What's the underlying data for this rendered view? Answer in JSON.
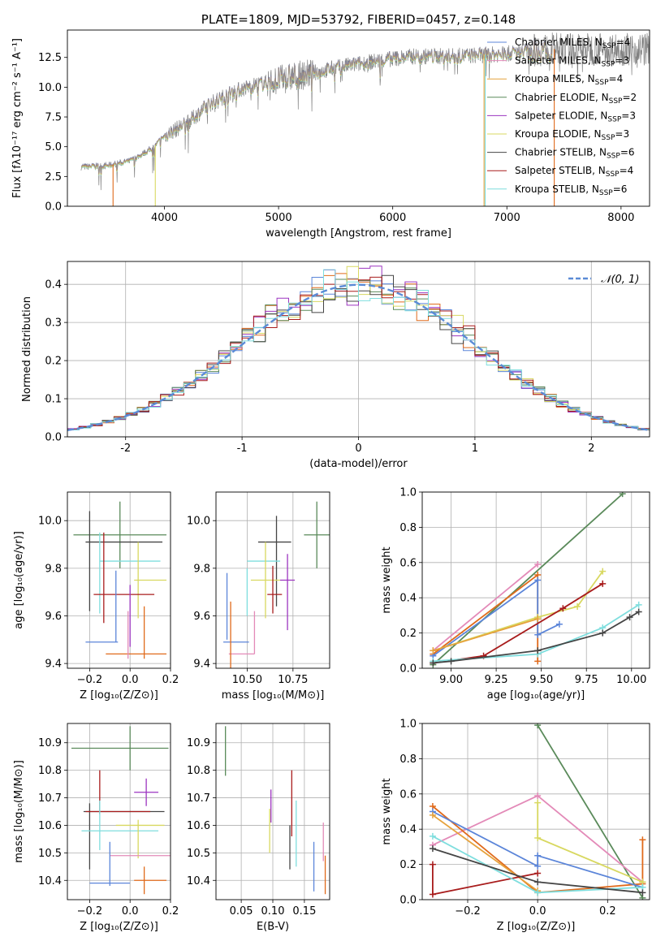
{
  "colors": {
    "chabrier_miles": "#5b85d9",
    "salpeter_miles": "#e06a1b",
    "kroupa_miles": "#e6a23c",
    "chabrier_elodie": "#5a8a5a",
    "salpeter_elodie": "#9c34c0",
    "kroupa_elodie": "#d8d860",
    "chabrier_stelib": "#454545",
    "salpeter_stelib": "#a81c1c",
    "kroupa_stelib": "#7fdede",
    "kroupa_miles_pink": "#e38ab8",
    "normal_curve": "#5b8bd6",
    "grid": "#b0b0b0"
  },
  "chart_data": [
    {
      "id": "spectrum",
      "type": "line",
      "title": "PLATE=1809, MJD=53792, FIBERID=0457, z=0.148",
      "xlabel": "wavelength [Angstrom, rest frame]",
      "ylabel": "Flux [fλ10⁻¹⁷ erg cm⁻² s⁻¹ A⁻¹]",
      "xlim": [
        3150,
        8250
      ],
      "ylim": [
        0,
        14.8
      ],
      "xticks": [
        4000,
        5000,
        6000,
        7000,
        8000
      ],
      "yticks": [
        0.0,
        2.5,
        5.0,
        7.5,
        10.0,
        12.5
      ],
      "grid": false,
      "legend_position": "top-right",
      "legend": [
        {
          "label": "Chabrier MILES, N",
          "sub": "SSP",
          "tail": "=4",
          "color_key": "chabrier_miles"
        },
        {
          "label": "Salpeter MILES, N",
          "sub": "SSP",
          "tail": "=3",
          "color_key": "kroupa_miles_pink"
        },
        {
          "label": "Kroupa MILES, N",
          "sub": "SSP",
          "tail": "=4",
          "color_key": "kroupa_miles"
        },
        {
          "label": "Chabrier ELODIE, N",
          "sub": "SSP",
          "tail": "=2",
          "color_key": "chabrier_elodie"
        },
        {
          "label": "Salpeter ELODIE, N",
          "sub": "SSP",
          "tail": "=3",
          "color_key": "salpeter_elodie"
        },
        {
          "label": "Kroupa ELODIE, N",
          "sub": "SSP",
          "tail": "=3",
          "color_key": "kroupa_elodie"
        },
        {
          "label": "Chabrier STELIB, N",
          "sub": "SSP",
          "tail": "=6",
          "color_key": "chabrier_stelib"
        },
        {
          "label": "Salpeter STELIB, N",
          "sub": "SSP",
          "tail": "=4",
          "color_key": "salpeter_stelib"
        },
        {
          "label": "Kroupa STELIB, N",
          "sub": "SSP",
          "tail": "=6",
          "color_key": "kroupa_stelib"
        }
      ],
      "continuum": [
        [
          3270,
          3.3
        ],
        [
          3500,
          3.4
        ],
        [
          3700,
          3.8
        ],
        [
          3900,
          4.9
        ],
        [
          4000,
          5.9
        ],
        [
          4200,
          7.0
        ],
        [
          4400,
          8.6
        ],
        [
          4600,
          9.6
        ],
        [
          4800,
          10.2
        ],
        [
          5000,
          10.6
        ],
        [
          5200,
          11.0
        ],
        [
          5400,
          11.4
        ],
        [
          5600,
          11.8
        ],
        [
          5800,
          12.1
        ],
        [
          6000,
          12.4
        ],
        [
          6200,
          12.6
        ],
        [
          6500,
          12.6
        ],
        [
          6800,
          12.7
        ],
        [
          7000,
          12.8
        ],
        [
          7200,
          13.1
        ],
        [
          7400,
          13.2
        ],
        [
          7600,
          13.2
        ]
      ],
      "model_range": [
        3270,
        7400
      ],
      "cutoff_lines": [
        {
          "x": 3550,
          "color_key": "salpeter_miles"
        },
        {
          "x": 3920,
          "color_key": "kroupa_elodie"
        },
        {
          "x": 6800,
          "color_key": "kroupa_miles"
        },
        {
          "x": 6810,
          "color_key": "kroupa_stelib"
        },
        {
          "x": 7415,
          "color_key": "salpeter_miles"
        }
      ]
    },
    {
      "id": "residuals",
      "type": "histogram",
      "xlabel": "(data-model)/error",
      "ylabel": "Normed distribution",
      "xlim": [
        -2.5,
        2.5
      ],
      "ylim": [
        0,
        0.46
      ],
      "xticks": [
        -2,
        -1,
        0,
        1,
        2
      ],
      "yticks": [
        0.0,
        0.1,
        0.2,
        0.3,
        0.4
      ],
      "grid": true,
      "legend": "𝒩(0, 1)",
      "bin_width": 0.1,
      "hist_series": [
        "chabrier_miles",
        "salpeter_miles",
        "chabrier_elodie",
        "salpeter_elodie",
        "kroupa_elodie",
        "chabrier_stelib",
        "salpeter_stelib",
        "kroupa_stelib"
      ]
    },
    {
      "id": "age_vs_Z",
      "type": "errorbar",
      "xlabel": "Z [log₁₀(Z/Z⊙)]",
      "ylabel": "age  [log₁₀(age/yr)]",
      "xlim": [
        -0.31,
        0.2
      ],
      "ylim": [
        9.38,
        10.12
      ],
      "xticks": [
        -0.2,
        0.0,
        0.2
      ],
      "xticklabels": [
        "−0.2",
        "0.0",
        "0.2"
      ],
      "yticks": [
        9.4,
        9.6,
        9.8,
        10.0
      ],
      "grid": true,
      "points": [
        {
          "c": "chabrier_elodie",
          "x": -0.05,
          "xe": 0.23,
          "y": 9.94,
          "ye": 0.14
        },
        {
          "c": "chabrier_stelib",
          "x": -0.03,
          "xe": 0.19,
          "y": 9.91,
          "ye": 0.0
        },
        {
          "c": "chabrier_stelib",
          "x": -0.2,
          "xe": 0.0,
          "y": 9.83,
          "ye": 0.21
        },
        {
          "c": "kroupa_stelib",
          "x": 0.0,
          "xe": 0.15,
          "y": 9.83,
          "ye": 0.0
        },
        {
          "c": "kroupa_stelib",
          "x": -0.15,
          "xe": 0.0,
          "y": 9.78,
          "ye": 0.17
        },
        {
          "c": "kroupa_elodie",
          "x": 0.1,
          "xe": 0.08,
          "y": 9.75,
          "ye": 0.0
        },
        {
          "c": "kroupa_elodie",
          "x": 0.04,
          "xe": 0.0,
          "y": 9.75,
          "ye": 0.16
        },
        {
          "c": "salpeter_stelib",
          "x": -0.13,
          "xe": 0.0,
          "y": 9.76,
          "ye": 0.19
        },
        {
          "c": "salpeter_stelib",
          "x": -0.03,
          "xe": 0.15,
          "y": 9.69,
          "ye": 0.0
        },
        {
          "c": "chabrier_miles",
          "x": -0.07,
          "xe": 0.0,
          "y": 9.64,
          "ye": 0.15
        },
        {
          "c": "salpeter_elodie",
          "x": 0.0,
          "xe": 0.0,
          "y": 9.6,
          "ye": 0.13
        },
        {
          "c": "chabrier_miles",
          "x": -0.14,
          "xe": 0.08,
          "y": 9.49,
          "ye": 0.0
        },
        {
          "c": "salpeter_miles",
          "x": 0.07,
          "xe": 0.0,
          "y": 9.53,
          "ye": 0.11
        },
        {
          "c": "salpeter_miles",
          "x": 0.03,
          "xe": 0.15,
          "y": 9.44,
          "ye": 0.0
        },
        {
          "c": "kroupa_miles_pink",
          "x": -0.01,
          "xe": 0.0,
          "y": 9.52,
          "ye": 0.1
        }
      ]
    },
    {
      "id": "age_vs_mass",
      "type": "errorbar",
      "xlabel": "mass [log₁₀(M/M⊙)]",
      "ylabel": "",
      "xlim": [
        10.33,
        10.95
      ],
      "ylim": [
        9.38,
        10.12
      ],
      "xticks": [
        10.5,
        10.75
      ],
      "xticklabels": [
        "10.50",
        "10.75"
      ],
      "yticks": [
        9.4,
        9.6,
        9.8,
        10.0
      ],
      "grid": true,
      "points": [
        {
          "c": "chabrier_elodie",
          "x": 10.88,
          "xe": 0.07,
          "y": 9.94,
          "ye": 0.14
        },
        {
          "c": "chabrier_stelib",
          "x": 10.65,
          "xe": 0.09,
          "y": 9.91,
          "ye": 0.0
        },
        {
          "c": "chabrier_stelib",
          "x": 10.66,
          "xe": 0.0,
          "y": 9.83,
          "ye": 0.19
        },
        {
          "c": "kroupa_stelib",
          "x": 10.59,
          "xe": 0.09,
          "y": 9.83,
          "ye": 0.0
        },
        {
          "c": "kroupa_stelib",
          "x": 10.5,
          "xe": 0.0,
          "y": 9.7,
          "ye": 0.1
        },
        {
          "c": "kroupa_elodie",
          "x": 10.6,
          "xe": 0.08,
          "y": 9.75,
          "ye": 0.0
        },
        {
          "c": "kroupa_elodie",
          "x": 10.6,
          "xe": 0.0,
          "y": 9.75,
          "ye": 0.16
        },
        {
          "c": "salpeter_elodie",
          "x": 10.72,
          "xe": 0.04,
          "y": 9.75,
          "ye": 0.0
        },
        {
          "c": "salpeter_elodie",
          "x": 10.72,
          "xe": 0.0,
          "y": 9.7,
          "ye": 0.16
        },
        {
          "c": "salpeter_stelib",
          "x": 10.65,
          "xe": 0.04,
          "y": 9.69,
          "ye": 0.0
        },
        {
          "c": "salpeter_stelib",
          "x": 10.64,
          "xe": 0.0,
          "y": 9.71,
          "ye": 0.1
        },
        {
          "c": "chabrier_miles",
          "x": 10.39,
          "xe": 0.0,
          "y": 9.64,
          "ye": 0.14
        },
        {
          "c": "chabrier_miles",
          "x": 10.44,
          "xe": 0.07,
          "y": 9.49,
          "ye": 0.0
        },
        {
          "c": "kroupa_miles_pink",
          "x": 10.47,
          "xe": 0.07,
          "y": 9.44,
          "ye": 0.0
        },
        {
          "c": "salpeter_miles",
          "x": 10.41,
          "xe": 0.0,
          "y": 9.52,
          "ye": 0.14
        },
        {
          "c": "kroupa_miles_pink",
          "x": 10.54,
          "xe": 0.0,
          "y": 9.53,
          "ye": 0.09
        }
      ]
    },
    {
      "id": "weight_vs_age",
      "type": "line",
      "xlabel": "age  [log₁₀(age/yr)]",
      "ylabel": "mass weight",
      "xlim": [
        8.84,
        10.1
      ],
      "ylim": [
        0,
        1.0
      ],
      "xticks": [
        9.0,
        9.25,
        9.5,
        9.75,
        10.0
      ],
      "xticklabels": [
        "9.00",
        "9.25",
        "9.50",
        "9.75",
        "10.00"
      ],
      "yticks": [
        0.0,
        0.2,
        0.4,
        0.6,
        0.8,
        1.0
      ],
      "grid": true,
      "series": [
        {
          "c": "chabrier_elodie",
          "x": [
            8.9,
            9.95
          ],
          "y": [
            0.02,
            0.99
          ]
        },
        {
          "c": "kroupa_miles_pink",
          "x": [
            8.9,
            9.48
          ],
          "y": [
            0.1,
            0.59
          ]
        },
        {
          "c": "salpeter_miles",
          "x": [
            8.9,
            9.48,
            9.48
          ],
          "y": [
            0.08,
            0.53,
            0.04
          ]
        },
        {
          "c": "chabrier_miles",
          "x": [
            8.9,
            9.48,
            9.48,
            9.6
          ],
          "y": [
            0.07,
            0.5,
            0.19,
            0.25
          ]
        },
        {
          "c": "kroupa_elodie",
          "x": [
            8.9,
            9.48,
            9.7,
            9.84
          ],
          "y": [
            0.1,
            0.29,
            0.35,
            0.55
          ]
        },
        {
          "c": "kroupa_miles",
          "x": [
            8.9,
            9.48
          ],
          "y": [
            0.1,
            0.28
          ]
        },
        {
          "c": "salpeter_stelib",
          "x": [
            8.9,
            9.18,
            9.62,
            9.84
          ],
          "y": [
            0.03,
            0.07,
            0.34,
            0.48
          ]
        },
        {
          "c": "kroupa_stelib",
          "x": [
            8.9,
            9.48,
            9.84,
            10.04
          ],
          "y": [
            0.04,
            0.08,
            0.23,
            0.36
          ]
        },
        {
          "c": "chabrier_stelib",
          "x": [
            8.9,
            9.0,
            9.48,
            9.84,
            9.99,
            10.04
          ],
          "y": [
            0.03,
            0.04,
            0.1,
            0.2,
            0.29,
            0.32
          ]
        }
      ]
    },
    {
      "id": "mass_vs_Z",
      "type": "errorbar",
      "xlabel": "Z [log₁₀(Z/Z⊙)]",
      "ylabel": "mass [log₁₀(M/M⊙)]",
      "xlim": [
        -0.31,
        0.2
      ],
      "ylim": [
        10.33,
        10.97
      ],
      "xticks": [
        -0.2,
        0.0,
        0.2
      ],
      "xticklabels": [
        "−0.2",
        "0.0",
        "0.2"
      ],
      "yticks": [
        10.4,
        10.5,
        10.6,
        10.7,
        10.8,
        10.9
      ],
      "grid": true,
      "points": [
        {
          "c": "chabrier_elodie",
          "x": 0.0,
          "xe": 0.0,
          "y": 10.88,
          "ye": 0.08
        },
        {
          "c": "chabrier_elodie",
          "x": -0.05,
          "xe": 0.24,
          "y": 10.88,
          "ye": 0.0
        },
        {
          "c": "salpeter_stelib",
          "x": -0.15,
          "xe": 0.0,
          "y": 10.72,
          "ye": 0.08
        },
        {
          "c": "salpeter_elodie",
          "x": 0.08,
          "xe": 0.06,
          "y": 10.72,
          "ye": 0.0
        },
        {
          "c": "salpeter_elodie",
          "x": 0.08,
          "xe": 0.0,
          "y": 10.72,
          "ye": 0.05
        },
        {
          "c": "chabrier_stelib",
          "x": -0.03,
          "xe": 0.2,
          "y": 10.65,
          "ye": 0.0
        },
        {
          "c": "chabrier_stelib",
          "x": -0.2,
          "xe": 0.0,
          "y": 10.56,
          "ye": 0.12
        },
        {
          "c": "salpeter_stelib",
          "x": -0.06,
          "xe": 0.16,
          "y": 10.65,
          "ye": 0.0
        },
        {
          "c": "kroupa_stelib",
          "x": -0.15,
          "xe": 0.0,
          "y": 10.6,
          "ye": 0.09
        },
        {
          "c": "kroupa_stelib",
          "x": -0.05,
          "xe": 0.19,
          "y": 10.58,
          "ye": 0.0
        },
        {
          "c": "kroupa_elodie",
          "x": 0.05,
          "xe": 0.12,
          "y": 10.6,
          "ye": 0.0
        },
        {
          "c": "kroupa_elodie",
          "x": 0.04,
          "xe": 0.0,
          "y": 10.55,
          "ye": 0.07
        },
        {
          "c": "kroupa_miles_pink",
          "x": 0.05,
          "xe": 0.15,
          "y": 10.49,
          "ye": 0.0
        },
        {
          "c": "chabrier_miles",
          "x": -0.1,
          "xe": 0.0,
          "y": 10.46,
          "ye": 0.08
        },
        {
          "c": "chabrier_miles",
          "x": -0.1,
          "xe": 0.1,
          "y": 10.39,
          "ye": 0.0
        },
        {
          "c": "salpeter_miles",
          "x": 0.07,
          "xe": 0.0,
          "y": 10.4,
          "ye": 0.05
        },
        {
          "c": "salpeter_miles",
          "x": 0.1,
          "xe": 0.08,
          "y": 10.4,
          "ye": 0.0
        }
      ]
    },
    {
      "id": "mass_vs_EBV",
      "type": "errorbar",
      "xlabel": "E(B-V)",
      "ylabel": "",
      "xlim": [
        0.01,
        0.19
      ],
      "ylim": [
        10.33,
        10.97
      ],
      "xticks": [
        0.05,
        0.1,
        0.15
      ],
      "xticklabels": [
        "0.05",
        "0.10",
        "0.15"
      ],
      "yticks": [
        10.4,
        10.5,
        10.6,
        10.7,
        10.8,
        10.9
      ],
      "grid": true,
      "points": [
        {
          "c": "chabrier_elodie",
          "x": 0.025,
          "xe": 0.0,
          "y": 10.87,
          "ye": 0.09
        },
        {
          "c": "salpeter_elodie",
          "x": 0.097,
          "xe": 0.0,
          "y": 10.67,
          "ye": 0.06
        },
        {
          "c": "kroupa_elodie",
          "x": 0.095,
          "xe": 0.0,
          "y": 10.58,
          "ye": 0.08
        },
        {
          "c": "salpeter_stelib",
          "x": 0.13,
          "xe": 0.0,
          "y": 10.68,
          "ye": 0.12
        },
        {
          "c": "chabrier_stelib",
          "x": 0.127,
          "xe": 0.0,
          "y": 10.52,
          "ye": 0.08
        },
        {
          "c": "kroupa_stelib",
          "x": 0.137,
          "xe": 0.0,
          "y": 10.57,
          "ye": 0.12
        },
        {
          "c": "chabrier_miles",
          "x": 0.165,
          "xe": 0.0,
          "y": 10.45,
          "ye": 0.09
        },
        {
          "c": "kroupa_miles_pink",
          "x": 0.18,
          "xe": 0.0,
          "y": 10.54,
          "ye": 0.07
        },
        {
          "c": "salpeter_miles",
          "x": 0.183,
          "xe": 0.0,
          "y": 10.42,
          "ye": 0.07
        }
      ]
    },
    {
      "id": "weight_vs_Z",
      "type": "line",
      "xlabel": "Z [log₁₀(Z/Z⊙)]",
      "ylabel": "mass weight",
      "xlim": [
        -0.33,
        0.32
      ],
      "ylim": [
        0,
        1.0
      ],
      "xticks": [
        -0.2,
        0.0,
        0.2
      ],
      "xticklabels": [
        "−0.2",
        "0.0",
        "0.2"
      ],
      "yticks": [
        0.0,
        0.2,
        0.4,
        0.6,
        0.8,
        1.0
      ],
      "grid": true,
      "series": [
        {
          "c": "chabrier_elodie",
          "x": [
            0.0,
            0.3
          ],
          "y": [
            0.99,
            0.01
          ]
        },
        {
          "c": "kroupa_miles_pink",
          "x": [
            -0.3,
            0.0,
            0.3
          ],
          "y": [
            0.31,
            0.59,
            0.1
          ]
        },
        {
          "c": "salpeter_miles",
          "x": [
            -0.3,
            0.0,
            0.3,
            0.3
          ],
          "y": [
            0.53,
            0.04,
            0.09,
            0.34
          ]
        },
        {
          "c": "chabrier_miles",
          "x": [
            -0.3,
            0.0,
            0.0,
            0.3
          ],
          "y": [
            0.5,
            0.19,
            0.25,
            0.07
          ]
        },
        {
          "c": "kroupa_elodie",
          "x": [
            0.0,
            0.0,
            0.3
          ],
          "y": [
            0.55,
            0.35,
            0.1
          ]
        },
        {
          "c": "kroupa_miles",
          "x": [
            -0.3,
            0.0
          ],
          "y": [
            0.48,
            0.05
          ]
        },
        {
          "c": "salpeter_stelib",
          "x": [
            -0.3,
            -0.3,
            0.0
          ],
          "y": [
            0.2,
            0.03,
            0.15
          ]
        },
        {
          "c": "kroupa_stelib",
          "x": [
            -0.3,
            0.0,
            0.3
          ],
          "y": [
            0.36,
            0.04,
            0.07
          ]
        },
        {
          "c": "chabrier_stelib",
          "x": [
            -0.3,
            0.0,
            0.3
          ],
          "y": [
            0.29,
            0.1,
            0.04
          ]
        }
      ]
    }
  ]
}
